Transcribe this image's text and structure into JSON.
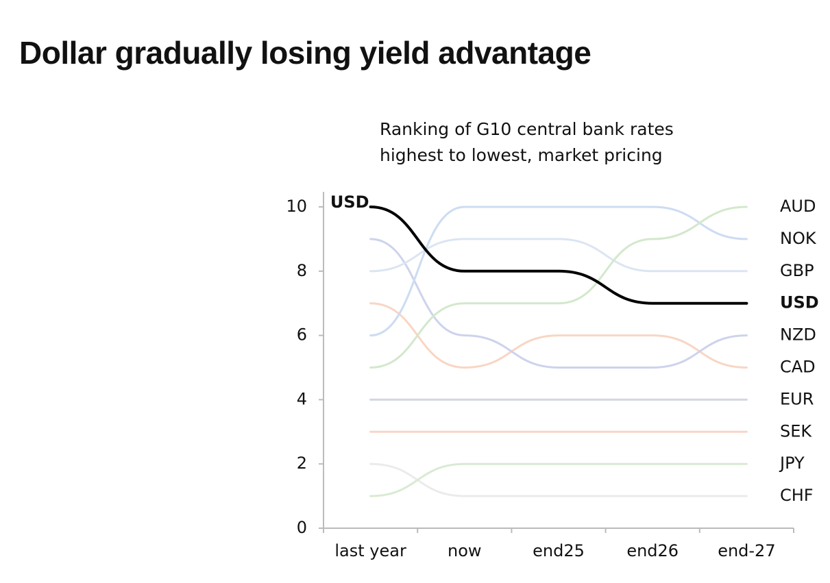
{
  "chart_data": {
    "type": "bump",
    "title": "Dollar gradually losing yield advantage",
    "subtitle": "Ranking of G10 central bank rates highest to lowest, market pricing",
    "categories": [
      "last year",
      "now",
      "end25",
      "end26",
      "end-27"
    ],
    "ylim": [
      0,
      10
    ],
    "yticks": [
      0,
      2,
      4,
      6,
      8,
      10
    ],
    "series": [
      {
        "name": "CHF",
        "color": "#ebebeb",
        "values": [
          2,
          1,
          1,
          1,
          1
        ]
      },
      {
        "name": "JPY",
        "color": "#d9ead3",
        "values": [
          1,
          2,
          2,
          2,
          2
        ]
      },
      {
        "name": "SEK",
        "color": "#f7d5c7",
        "values": [
          3,
          3,
          3,
          3,
          3
        ]
      },
      {
        "name": "EUR",
        "color": "#d3d7de",
        "values": [
          4,
          4,
          4,
          4,
          4
        ]
      },
      {
        "name": "CAD",
        "color": "#f8d6c4",
        "values": [
          7,
          5,
          6,
          6,
          5
        ]
      },
      {
        "name": "NZD",
        "color": "#cdd3ec",
        "values": [
          9,
          6,
          5,
          5,
          6
        ]
      },
      {
        "name": "GBP",
        "color": "#dbe5f3",
        "values": [
          8,
          9,
          9,
          8,
          8
        ]
      },
      {
        "name": "NOK",
        "color": "#cddcf2",
        "values": [
          6,
          10,
          10,
          10,
          9
        ]
      },
      {
        "name": "AUD",
        "color": "#d3e8cc",
        "values": [
          5,
          7,
          7,
          9,
          10
        ]
      },
      {
        "name": "USD",
        "color": "#000000",
        "values": [
          10,
          8,
          8,
          7,
          7
        ],
        "emphasis": true
      }
    ]
  }
}
